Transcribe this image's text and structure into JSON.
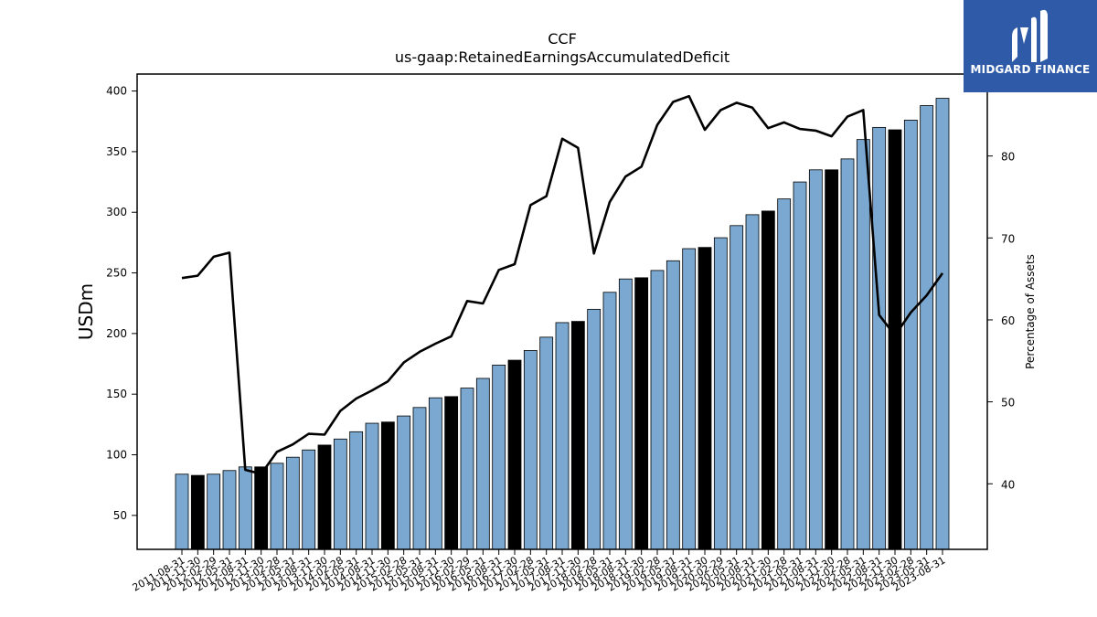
{
  "header": {
    "title": "CCF",
    "subtitle": "us-gaap:RetainedEarningsAccumulatedDeficit"
  },
  "logo": {
    "name": "midgard-logo",
    "text": "MIDGARD FINANCE",
    "bg": "#2f5aa8"
  },
  "chart_data": {
    "type": "bar",
    "title": "CCF",
    "subtitle": "us-gaap:RetainedEarningsAccumulatedDeficit",
    "ylabel": "USDm",
    "y2label": "Percentage of Assets",
    "ylim": [
      22,
      414
    ],
    "y2lim": [
      32,
      90
    ],
    "yticks": [
      50,
      100,
      150,
      200,
      250,
      300,
      350,
      400
    ],
    "y2ticks": [
      40,
      50,
      60,
      70,
      80
    ],
    "bar_color": "#7aa8d0",
    "highlight_color": "#000000",
    "line_color": "#000000",
    "categories": [
      "2011-08-31",
      "2011-11-30",
      "2012-02-29",
      "2012-05-31",
      "2012-08-31",
      "2012-11-30",
      "2013-02-28",
      "2013-05-31",
      "2013-08-31",
      "2013-11-30",
      "2014-02-28",
      "2014-05-31",
      "2014-08-31",
      "2014-11-30",
      "2015-02-28",
      "2015-05-31",
      "2015-08-31",
      "2015-11-30",
      "2016-02-29",
      "2016-05-31",
      "2016-08-31",
      "2016-11-30",
      "2017-02-28",
      "2017-05-31",
      "2017-08-31",
      "2017-11-30",
      "2018-02-28",
      "2018-05-31",
      "2018-08-31",
      "2018-11-30",
      "2019-02-28",
      "2019-05-31",
      "2019-08-31",
      "2019-11-30",
      "2020-02-29",
      "2020-05-31",
      "2020-08-31",
      "2020-11-30",
      "2021-02-28",
      "2021-05-31",
      "2021-08-31",
      "2021-11-30",
      "2022-02-28",
      "2022-05-31",
      "2022-08-31",
      "2022-11-30",
      "2023-02-28",
      "2023-05-31",
      "2023-08-31"
    ],
    "series": [
      {
        "values": [
          84,
          83,
          84,
          87,
          90,
          90,
          93,
          98,
          104,
          108,
          113,
          119,
          126,
          127,
          132,
          139,
          147,
          148,
          155,
          163,
          174,
          178,
          186,
          197,
          209,
          210,
          220,
          234,
          245,
          246,
          252,
          260,
          270,
          271,
          279,
          289,
          298,
          301,
          311,
          325,
          335,
          335,
          344,
          360,
          370,
          368,
          376,
          388,
          394
        ],
        "highlight": [
          false,
          true,
          false,
          false,
          false,
          true,
          false,
          false,
          false,
          true,
          false,
          false,
          false,
          true,
          false,
          false,
          false,
          true,
          false,
          false,
          false,
          true,
          false,
          false,
          false,
          true,
          false,
          false,
          false,
          true,
          false,
          false,
          false,
          true,
          false,
          false,
          false,
          true,
          false,
          false,
          false,
          true,
          false,
          false,
          false,
          true,
          false,
          false,
          false
        ]
      },
      {
        "axis": "right",
        "values": [
          65.1,
          65.4,
          67.7,
          68.2,
          41.7,
          41.2,
          43.9,
          44.8,
          46.1,
          46.0,
          48.9,
          50.4,
          51.4,
          52.5,
          54.8,
          56.1,
          57.1,
          58.0,
          62.3,
          62.0,
          66.1,
          66.8,
          74.0,
          75.1,
          82.1,
          81.0,
          68.1,
          74.4,
          77.5,
          78.7,
          83.8,
          86.6,
          87.3,
          83.2,
          85.6,
          86.5,
          85.9,
          83.4,
          84.1,
          83.3,
          83.1,
          82.4,
          84.8,
          85.6,
          60.6,
          58.1,
          60.9,
          63.0,
          65.7
        ]
      }
    ]
  }
}
